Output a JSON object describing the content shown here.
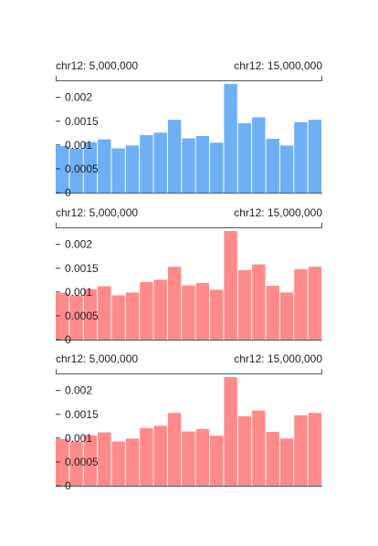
{
  "chart_data": [
    {
      "type": "bar",
      "region_label_start": "chr12: 5,000,000",
      "region_label_end": "chr12: 15,000,000",
      "bar_color": "#6eaff5",
      "yticks": [
        "0",
        "0.0005",
        "0.001",
        "0.0015",
        "0.002"
      ],
      "yticks_values": [
        0,
        0.0005,
        0.001,
        0.0015,
        0.002
      ],
      "ylim": [
        0,
        0.00232
      ],
      "values": [
        0.00098,
        0.00093,
        0.00106,
        0.00112,
        0.00093,
        0.00099,
        0.00121,
        0.00126,
        0.00153,
        0.00114,
        0.00119,
        0.00105,
        0.00228,
        0.00146,
        0.00158,
        0.00113,
        0.00099,
        0.00148,
        0.00153
      ]
    },
    {
      "type": "bar",
      "region_label_start": "chr12: 5,000,000",
      "region_label_end": "chr12: 15,000,000",
      "bar_color": "#ff8a8a",
      "yticks": [
        "0",
        "0.0005",
        "0.001",
        "0.0015",
        "0.002"
      ],
      "yticks_values": [
        0,
        0.0005,
        0.001,
        0.0015,
        0.002
      ],
      "ylim": [
        0,
        0.00232
      ],
      "values": [
        0.00098,
        0.00093,
        0.00106,
        0.00112,
        0.00093,
        0.00099,
        0.00121,
        0.00126,
        0.00153,
        0.00114,
        0.00119,
        0.00105,
        0.00228,
        0.00146,
        0.00158,
        0.00113,
        0.00099,
        0.00148,
        0.00153
      ]
    },
    {
      "type": "bar",
      "region_label_start": "chr12: 5,000,000",
      "region_label_end": "chr12: 15,000,000",
      "bar_color": "#ff8a8a",
      "yticks": [
        "0",
        "0.0005",
        "0.001",
        "0.0015",
        "0.002"
      ],
      "yticks_values": [
        0,
        0.0005,
        0.001,
        0.0015,
        0.002
      ],
      "ylim": [
        0,
        0.00232
      ],
      "values": [
        0.00098,
        0.00093,
        0.00106,
        0.00112,
        0.00093,
        0.00099,
        0.00121,
        0.00126,
        0.00153,
        0.00114,
        0.00119,
        0.00105,
        0.00228,
        0.00146,
        0.00158,
        0.00113,
        0.00099,
        0.00148,
        0.00153
      ]
    }
  ]
}
